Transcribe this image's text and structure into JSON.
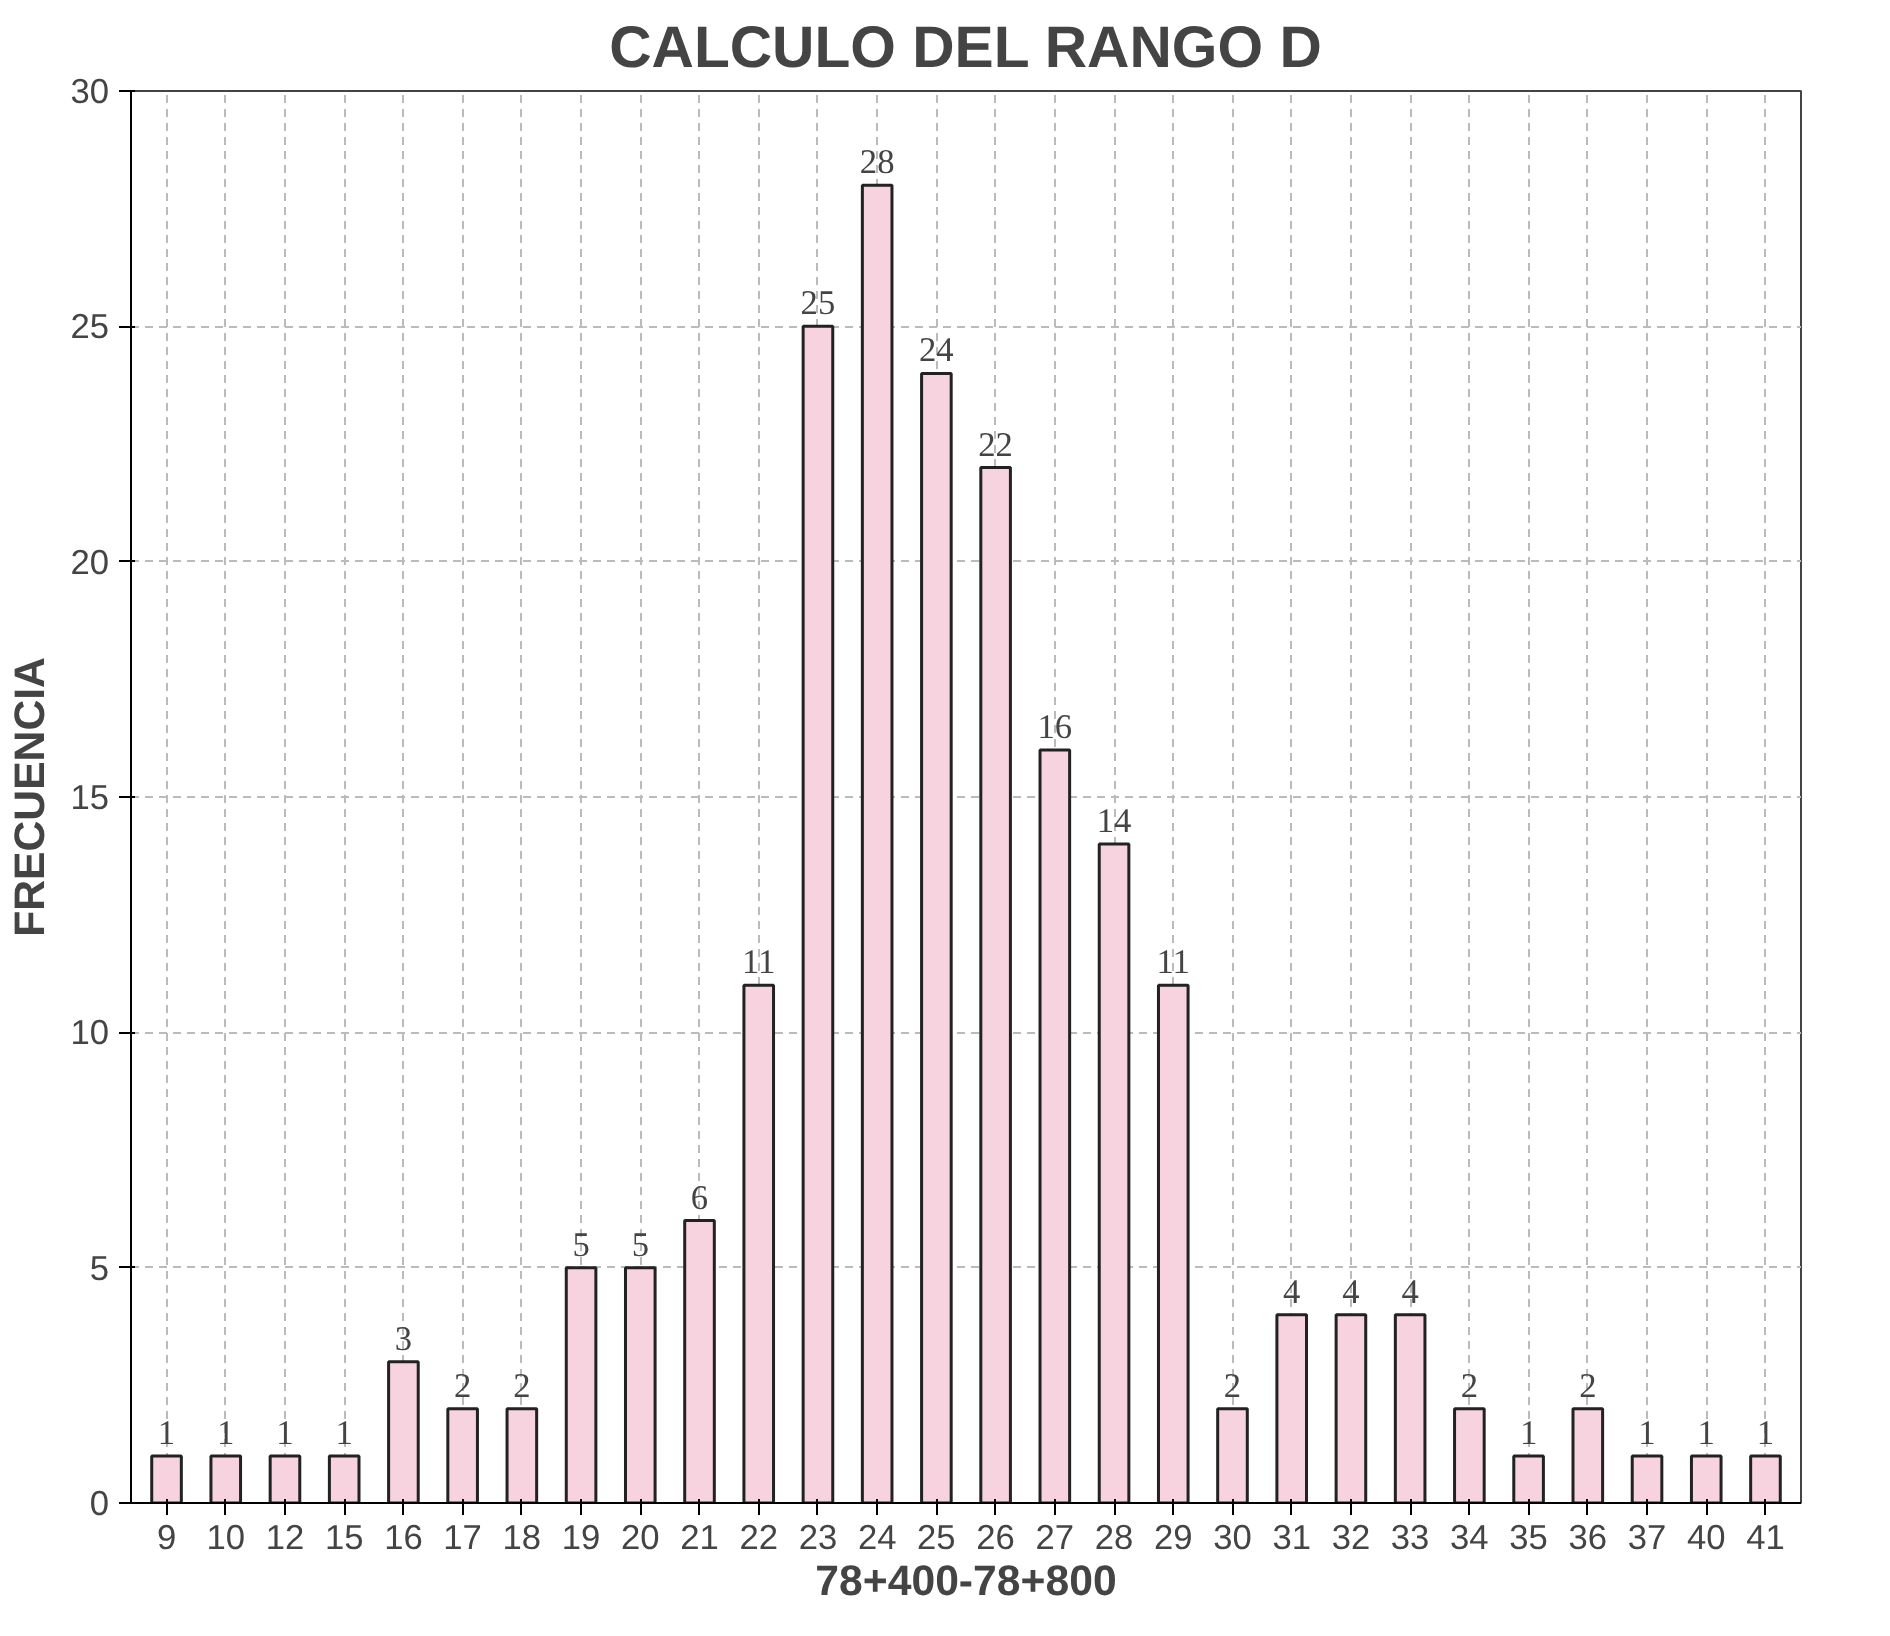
{
  "chart_data": {
    "type": "bar",
    "title": "CALCULO DEL RANGO D",
    "xlabel": "78+400-78+800",
    "ylabel": "FRECUENCIA",
    "categories": [
      "9",
      "10",
      "12",
      "15",
      "16",
      "17",
      "18",
      "19",
      "20",
      "21",
      "22",
      "23",
      "24",
      "25",
      "26",
      "27",
      "28",
      "29",
      "30",
      "31",
      "32",
      "33",
      "34",
      "35",
      "36",
      "37",
      "40",
      "41"
    ],
    "values": [
      1,
      1,
      1,
      1,
      3,
      2,
      2,
      5,
      5,
      6,
      11,
      25,
      28,
      24,
      22,
      16,
      14,
      11,
      2,
      4,
      4,
      4,
      2,
      1,
      2,
      1,
      1,
      1
    ],
    "color": "#f7d3df",
    "ylim": [
      0,
      30
    ],
    "yticks": [
      0,
      5,
      10,
      15,
      20,
      25,
      30
    ],
    "grid": true,
    "data_labels": true
  }
}
